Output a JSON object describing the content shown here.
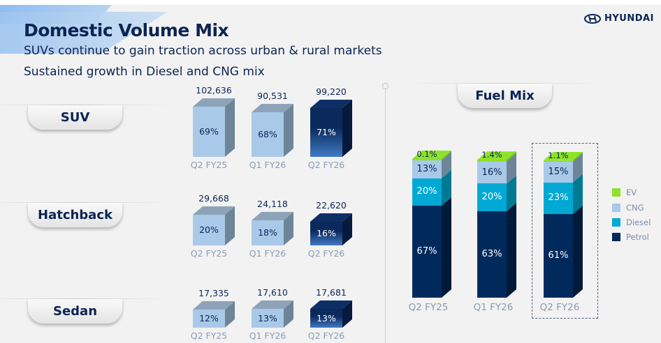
{
  "header": {
    "title": "Domestic Volume Mix",
    "subtitles": [
      "SUVs continue to gain traction across urban & rural markets",
      "Sustained growth in Diesel and CNG mix"
    ],
    "logo": "HYUNDAI"
  },
  "colors": {
    "past_front": "#a9c9e8",
    "past_side": "#6e8499",
    "current_front": "#0b2a5c",
    "ev": "#8ee22a",
    "cng": "#a9c9e8",
    "diesel": "#00a9d4",
    "petrol": "#012a5c"
  },
  "chart_data": [
    {
      "type": "bar",
      "title": "SUV",
      "categories": [
        "Q2 FY25",
        "Q1 FY26",
        "Q2 FY26"
      ],
      "volumes": [
        102636,
        90531,
        99220
      ],
      "volume_labels": [
        "102,636",
        "90,531",
        "99,220"
      ],
      "share_labels": [
        "69%",
        "68%",
        "71%"
      ],
      "share_pct": [
        69,
        68,
        71
      ]
    },
    {
      "type": "bar",
      "title": "Hatchback",
      "categories": [
        "Q2 FY25",
        "Q1 FY26",
        "Q2 FY26"
      ],
      "volumes": [
        29668,
        24118,
        22620
      ],
      "volume_labels": [
        "29,668",
        "24,118",
        "22,620"
      ],
      "share_labels": [
        "20%",
        "18%",
        "16%"
      ],
      "share_pct": [
        20,
        18,
        16
      ]
    },
    {
      "type": "bar",
      "title": "Sedan",
      "categories": [
        "Q2 FY25",
        "Q1 FY26",
        "Q2 FY26"
      ],
      "volumes": [
        17335,
        17610,
        17681
      ],
      "volume_labels": [
        "17,335",
        "17,610",
        "17,681"
      ],
      "share_labels": [
        "12%",
        "13%",
        "13%"
      ],
      "share_pct": [
        12,
        13,
        13
      ]
    },
    {
      "type": "bar",
      "stacked": true,
      "title": "Fuel Mix",
      "categories": [
        "Q2 FY25",
        "Q1 FY26",
        "Q2 FY26"
      ],
      "legend_position": "right",
      "highlighted": "Q2 FY26",
      "series": [
        {
          "name": "Petrol",
          "values": [
            67,
            63,
            61
          ],
          "labels": [
            "67%",
            "63%",
            "61%"
          ]
        },
        {
          "name": "Diesel",
          "values": [
            20,
            20,
            23
          ],
          "labels": [
            "20%",
            "20%",
            "23%"
          ]
        },
        {
          "name": "CNG",
          "values": [
            13,
            16,
            15
          ],
          "labels": [
            "13%",
            "16%",
            "15%"
          ]
        },
        {
          "name": "EV",
          "values": [
            0.1,
            1.4,
            1.1
          ],
          "labels": [
            "0.1%",
            "1.4%",
            "1.1%"
          ]
        }
      ],
      "legend": [
        "EV",
        "CNG",
        "Diesel",
        "Petrol"
      ]
    }
  ]
}
